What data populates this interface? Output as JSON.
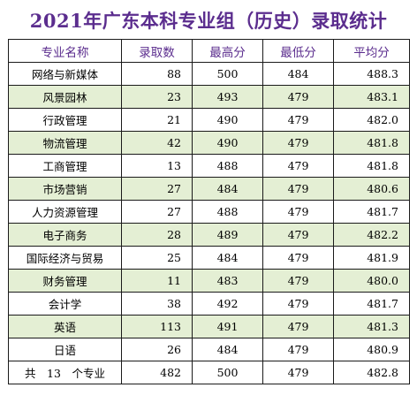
{
  "title": "2021年广东本科专业组（历史）录取统计",
  "headers": [
    "专业名称",
    "录取数",
    "最高分",
    "最低分",
    "平均分"
  ],
  "rows": [
    {
      "major": "网络与新媒体",
      "admitted": "88",
      "max": "500",
      "min": "484",
      "avg": "488.3"
    },
    {
      "major": "风景园林",
      "admitted": "23",
      "max": "493",
      "min": "479",
      "avg": "483.1"
    },
    {
      "major": "行政管理",
      "admitted": "21",
      "max": "490",
      "min": "479",
      "avg": "482.0"
    },
    {
      "major": "物流管理",
      "admitted": "42",
      "max": "490",
      "min": "479",
      "avg": "481.8"
    },
    {
      "major": "工商管理",
      "admitted": "13",
      "max": "488",
      "min": "479",
      "avg": "481.8"
    },
    {
      "major": "市场营销",
      "admitted": "27",
      "max": "484",
      "min": "479",
      "avg": "480.6"
    },
    {
      "major": "人力资源管理",
      "admitted": "27",
      "max": "488",
      "min": "479",
      "avg": "481.7"
    },
    {
      "major": "电子商务",
      "admitted": "28",
      "max": "489",
      "min": "479",
      "avg": "482.2"
    },
    {
      "major": "国际经济与贸易",
      "admitted": "25",
      "max": "484",
      "min": "479",
      "avg": "481.9"
    },
    {
      "major": "财务管理",
      "admitted": "11",
      "max": "483",
      "min": "479",
      "avg": "480.0"
    },
    {
      "major": "会计学",
      "admitted": "38",
      "max": "492",
      "min": "479",
      "avg": "481.7"
    },
    {
      "major": "英语",
      "admitted": "113",
      "max": "491",
      "min": "479",
      "avg": "481.3"
    },
    {
      "major": "日语",
      "admitted": "26",
      "max": "484",
      "min": "479",
      "avg": "480.9"
    }
  ],
  "total": {
    "label": "共　13　个专业",
    "admitted": "482",
    "max": "500",
    "min": "479",
    "avg": "482.8"
  },
  "colors": {
    "title": "#5b2d8e",
    "header_text": "#5b2d8e",
    "stripe": "#e4efd4"
  }
}
